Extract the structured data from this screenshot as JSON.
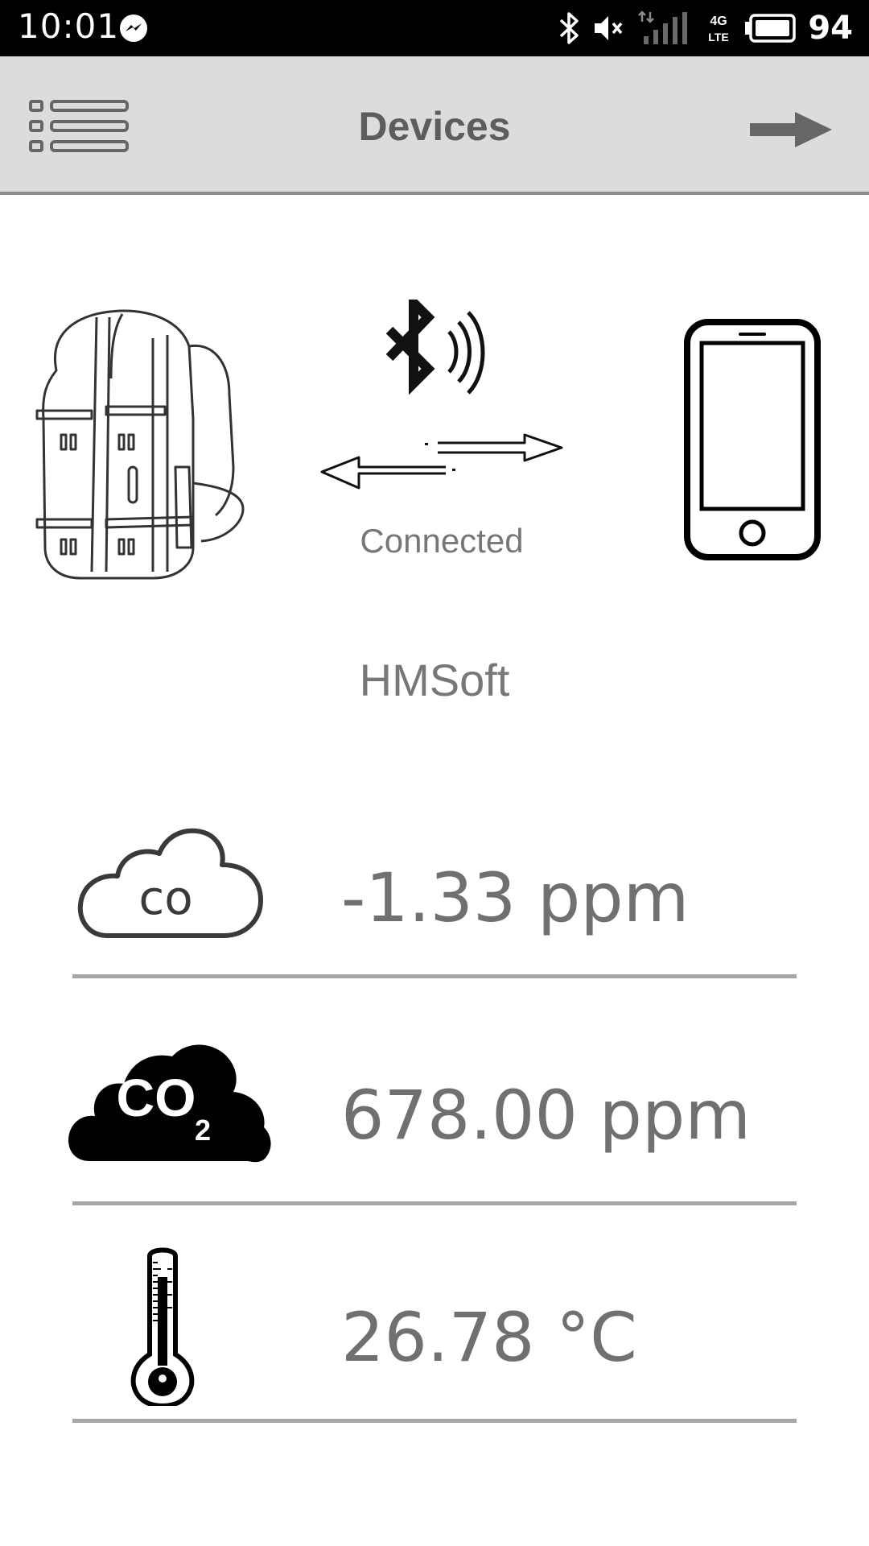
{
  "status_bar": {
    "time": "10:01",
    "battery_level": "94",
    "network_type": "4G LTE",
    "icons": [
      "messenger-icon",
      "bluetooth-icon",
      "mute-icon",
      "signal-icon",
      "battery-icon"
    ]
  },
  "app_bar": {
    "title": "Devices",
    "menu_icon": "list-icon",
    "next_icon": "arrow-right-icon"
  },
  "connection": {
    "status": "Connected",
    "device_name": "HMSoft",
    "icons": [
      "backpack-icon",
      "bluetooth-wave-icon",
      "bidirectional-arrow-icon",
      "smartphone-icon"
    ]
  },
  "sensors": [
    {
      "icon": "co-cloud-icon",
      "value": "-1.33 ppm"
    },
    {
      "icon": "co2-cloud-icon",
      "value": "678.00 ppm"
    },
    {
      "icon": "thermometer-icon",
      "value": "26.78 °C"
    }
  ],
  "colors": {
    "status_bar_bg": "#000000",
    "app_bar_bg": "#dcdcdc",
    "text_gray": "#777777",
    "divider": "#a6a6a6"
  }
}
